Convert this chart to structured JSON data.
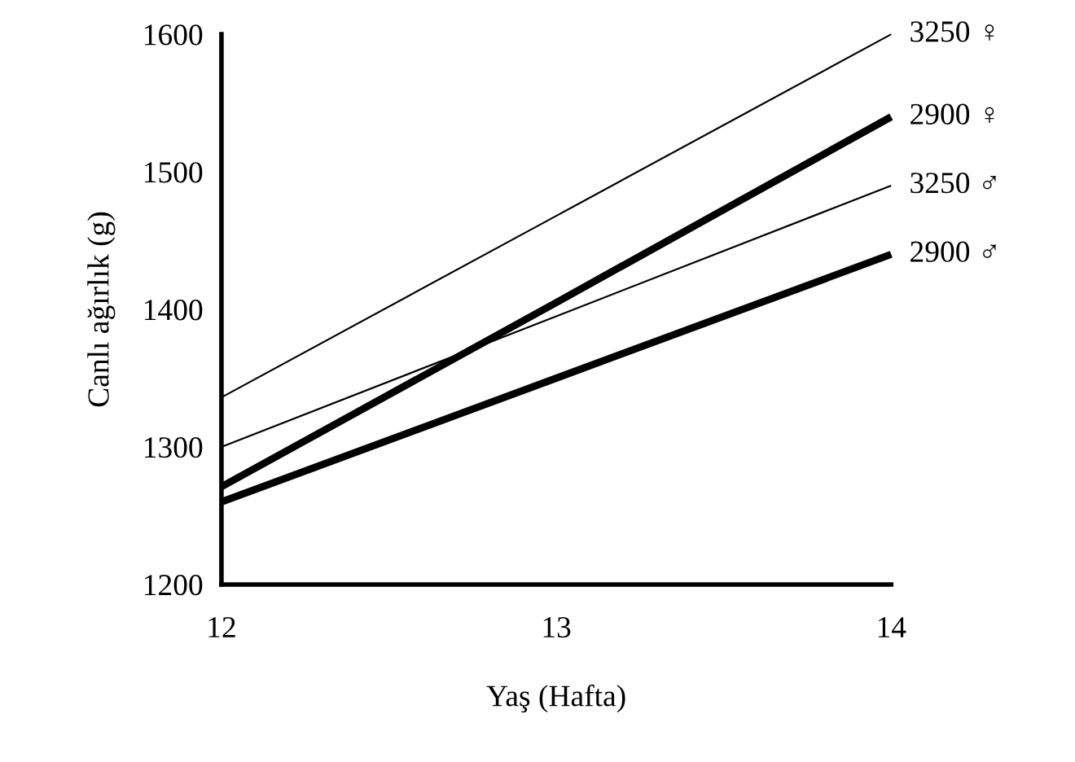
{
  "chart_data": {
    "type": "line",
    "xlabel": "Yaş (Hafta)",
    "ylabel": "Canlı ağırlık (g)",
    "x": [
      12,
      13,
      14
    ],
    "xlim": [
      12,
      14
    ],
    "xticks": [
      12,
      13,
      14
    ],
    "ylim": [
      1200,
      1600
    ],
    "yticks": [
      1200,
      1300,
      1400,
      1500,
      1600
    ],
    "grid": false,
    "legend": false,
    "marker": "none",
    "line_style": "solid",
    "series": [
      {
        "name": "3250 ♀",
        "color": "#000000",
        "values": [
          1336,
          1468,
          1600
        ]
      },
      {
        "name": "2900 ♀",
        "color": "#000000",
        "values": [
          1271,
          1405,
          1540
        ]
      },
      {
        "name": "3250 ♂",
        "color": "#000000",
        "values": [
          1300,
          1395,
          1490
        ]
      },
      {
        "name": "2900 ♂",
        "color": "#000000",
        "values": [
          1260,
          1350,
          1440
        ]
      }
    ]
  }
}
